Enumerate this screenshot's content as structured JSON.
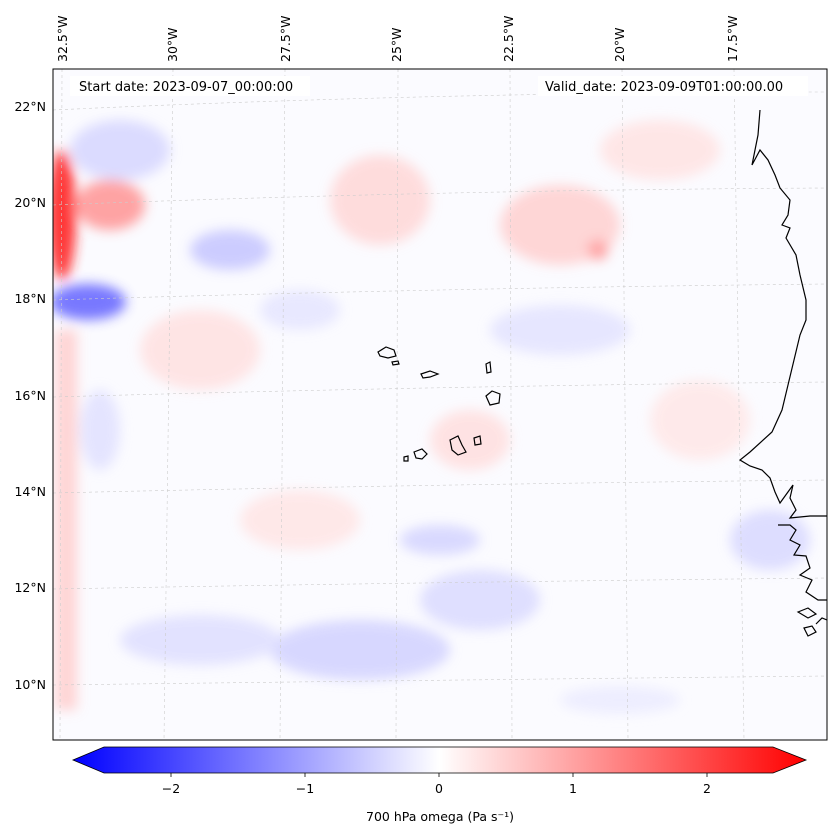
{
  "map": {
    "start_date": "Start date: 2023-09-07_00:00:00",
    "valid_date": "Valid_date: 2023-09-09T01:00:00.00",
    "lon_labels": [
      "32.5°W",
      "30°W",
      "27.5°W",
      "25°W",
      "22.5°W",
      "20°W",
      "17.5°W"
    ],
    "lat_labels": [
      "22°N",
      "20°N",
      "18°N",
      "16°N",
      "14°N",
      "12°N",
      "10°N"
    ],
    "field": "700 hPa omega",
    "colors": {
      "negative": "#0000ff",
      "zero": "#ffffff",
      "positive": "#ff0000",
      "coast": "#000000"
    }
  },
  "colorbar": {
    "label": "700 hPa omega (Pa s⁻¹)",
    "ticks": [
      "−2",
      "−1",
      "0",
      "1",
      "2"
    ],
    "tick_values": [
      -2,
      -1,
      0,
      1,
      2
    ],
    "range": [
      -2.5,
      2.5
    ]
  }
}
